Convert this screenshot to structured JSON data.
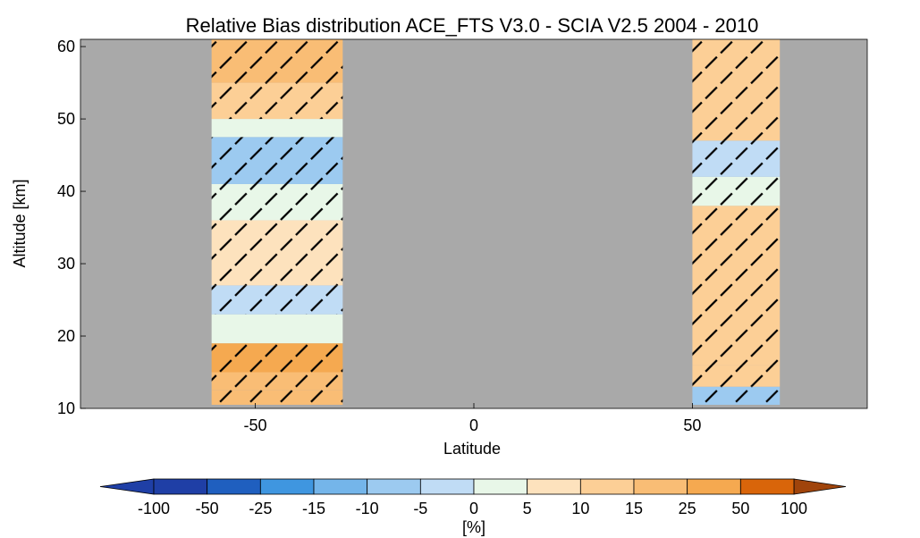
{
  "chart_data": {
    "type": "heatmap",
    "title": "Relative Bias distribution ACE_FTS V3.0 - SCIA V2.5 2004 - 2010",
    "xlabel": "Latitude",
    "ylabel": "Altitude [km]",
    "xlim": [
      -90,
      90
    ],
    "ylim": [
      10,
      61
    ],
    "xticks": [
      -50,
      0,
      50
    ],
    "yticks": [
      10,
      20,
      30,
      40,
      50,
      60
    ],
    "background_color": "#a9a9a9",
    "hatch_meaning_note": "",
    "colorbar": {
      "label": "[%]",
      "ticks": [
        "-100",
        "-50",
        "-25",
        "-15",
        "-10",
        "-5",
        "0",
        "5",
        "10",
        "15",
        "25",
        "50",
        "100"
      ],
      "colors": [
        "#1f3fa6",
        "#1f5fbf",
        "#3f96e0",
        "#74b5ea",
        "#9ccaf0",
        "#c0dcf5",
        "#e8f7e8",
        "#fde2bd",
        "#fccf96",
        "#f9bd75",
        "#f5a950",
        "#d9650a"
      ],
      "under_color": "#1f3fa6",
      "over_color": "#a0440b"
    },
    "bands": [
      {
        "lat_range": [
          -60,
          -30
        ],
        "segments": [
          {
            "alt": [
              10.5,
              12.5
            ],
            "bias_class": "15..25",
            "hatched": true
          },
          {
            "alt": [
              12.5,
              15.0
            ],
            "bias_class": "15..25",
            "hatched": true
          },
          {
            "alt": [
              15.0,
              19.0
            ],
            "bias_class": "25..50",
            "hatched": true
          },
          {
            "alt": [
              19.0,
              23.0
            ],
            "bias_class": "0..5",
            "hatched": false
          },
          {
            "alt": [
              23.0,
              27.0
            ],
            "bias_class": "-5..0",
            "hatched": true
          },
          {
            "alt": [
              27.0,
              36.0
            ],
            "bias_class": "5..10",
            "hatched": true
          },
          {
            "alt": [
              36.0,
              41.0
            ],
            "bias_class": "0..5",
            "hatched": true
          },
          {
            "alt": [
              41.0,
              47.5
            ],
            "bias_class": "-10..-5",
            "hatched": true
          },
          {
            "alt": [
              47.5,
              50.0
            ],
            "bias_class": "0..5",
            "hatched": false
          },
          {
            "alt": [
              50.0,
              55.0
            ],
            "bias_class": "10..15",
            "hatched": true
          },
          {
            "alt": [
              55.0,
              61.0
            ],
            "bias_class": "15..25",
            "hatched": true
          }
        ]
      },
      {
        "lat_range": [
          50,
          70
        ],
        "segments": [
          {
            "alt": [
              10.5,
              13.0
            ],
            "bias_class": "-10..-5",
            "hatched": true
          },
          {
            "alt": [
              13.0,
              16.0
            ],
            "bias_class": "10..15",
            "hatched": true
          },
          {
            "alt": [
              16.0,
              38.0
            ],
            "bias_class": "10..15",
            "hatched": true
          },
          {
            "alt": [
              38.0,
              42.0
            ],
            "bias_class": "0..5",
            "hatched": true
          },
          {
            "alt": [
              42.0,
              47.0
            ],
            "bias_class": "-5..0",
            "hatched": true
          },
          {
            "alt": [
              47.0,
              61.0
            ],
            "bias_class": "10..15",
            "hatched": true
          }
        ]
      }
    ]
  }
}
